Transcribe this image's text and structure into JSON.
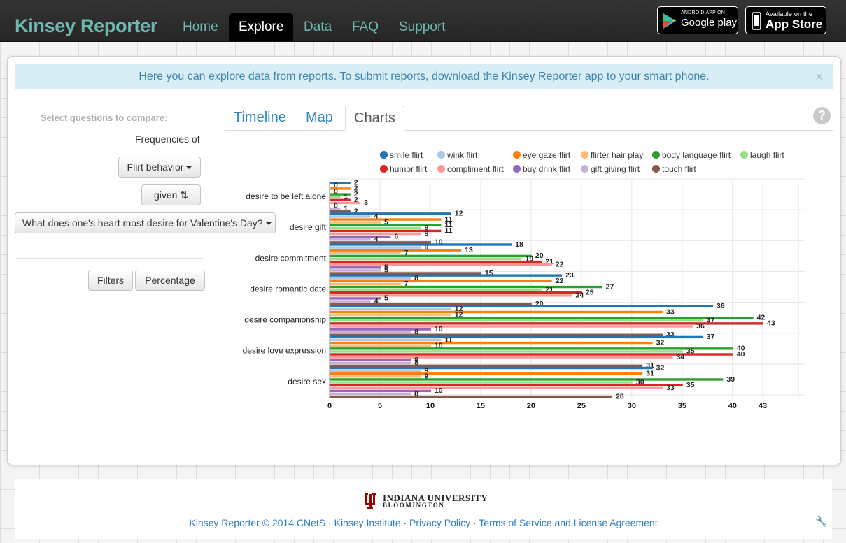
{
  "nav": {
    "brand": "Kinsey Reporter",
    "items": [
      "Home",
      "Explore",
      "Data",
      "FAQ",
      "Support"
    ],
    "active": "Explore",
    "google_small": "ANDROID APP ON",
    "google_big": "Google play",
    "apple_small": "Available on the",
    "apple_big": "App Store"
  },
  "alert": {
    "text": "Here you can explore data from reports. To submit reports, download the Kinsey Reporter app to your smart phone.",
    "close": "×"
  },
  "sidebar": {
    "heading": "Select questions to compare:",
    "freq_label": "Frequencies of",
    "category_button": "Flirt behavior",
    "direction_button": "given ⇅",
    "question_button": "What does one's heart most desire for Valentine's Day?",
    "filters_button": "Filters",
    "percentage_button": "Percentage"
  },
  "tabs": [
    "Timeline",
    "Map",
    "Charts"
  ],
  "help": "?",
  "chart_data": {
    "type": "bar",
    "orientation": "horizontal",
    "categories": [
      "desire to be left alone",
      "desire gift",
      "desire commitment",
      "desire romantic date",
      "desire companionship",
      "desire love expression",
      "desire sex"
    ],
    "series": [
      {
        "name": "smile flirt",
        "color": "#1f77b4",
        "values": [
          2,
          12,
          18,
          23,
          38,
          37,
          32
        ]
      },
      {
        "name": "wink flirt",
        "color": "#aec7e8",
        "values": [
          0,
          4,
          9,
          8,
          12,
          11,
          9
        ]
      },
      {
        "name": "eye gaze flirt",
        "color": "#ff7f0e",
        "values": [
          2,
          11,
          13,
          22,
          33,
          32,
          31
        ]
      },
      {
        "name": "flirter hair play",
        "color": "#ffbb78",
        "values": [
          0,
          5,
          7,
          7,
          12,
          10,
          9
        ]
      },
      {
        "name": "body language flirt",
        "color": "#2ca02c",
        "values": [
          2,
          11,
          20,
          27,
          42,
          40,
          39
        ]
      },
      {
        "name": "laugh flirt",
        "color": "#98df8a",
        "values": [
          1,
          9,
          19,
          21,
          37,
          35,
          30
        ]
      },
      {
        "name": "humor flirt",
        "color": "#d62728",
        "values": [
          2,
          11,
          21,
          25,
          43,
          40,
          35
        ]
      },
      {
        "name": "compliment flirt",
        "color": "#ff9896",
        "values": [
          3,
          9,
          22,
          24,
          36,
          34,
          33
        ]
      },
      {
        "name": "buy drink flirt",
        "color": "#9467bd",
        "values": [
          0,
          6,
          5,
          5,
          10,
          8,
          10
        ]
      },
      {
        "name": "gift giving flirt",
        "color": "#c5b0d5",
        "values": [
          1,
          4,
          5,
          4,
          8,
          8,
          8
        ]
      },
      {
        "name": "touch flirt",
        "color": "#8c564b",
        "values": [
          2,
          10,
          15,
          20,
          33,
          31,
          28
        ]
      }
    ],
    "x_ticks": [
      "0",
      "5",
      "10",
      "15",
      "20",
      "25",
      "30",
      "35",
      "40",
      "43"
    ],
    "xlim": [
      0,
      43
    ],
    "grid": true,
    "legend_position": "top"
  },
  "footer": {
    "iu_name": "INDIANA UNIVERSITY",
    "iu_sub": "BLOOMINGTON",
    "copyright": "Kinsey Reporter © 2014 CNetS",
    "link_institute": "Kinsey Institute",
    "link_privacy": "Privacy Policy",
    "link_terms": "Terms of Service and License Agreement",
    "sep": " · "
  }
}
